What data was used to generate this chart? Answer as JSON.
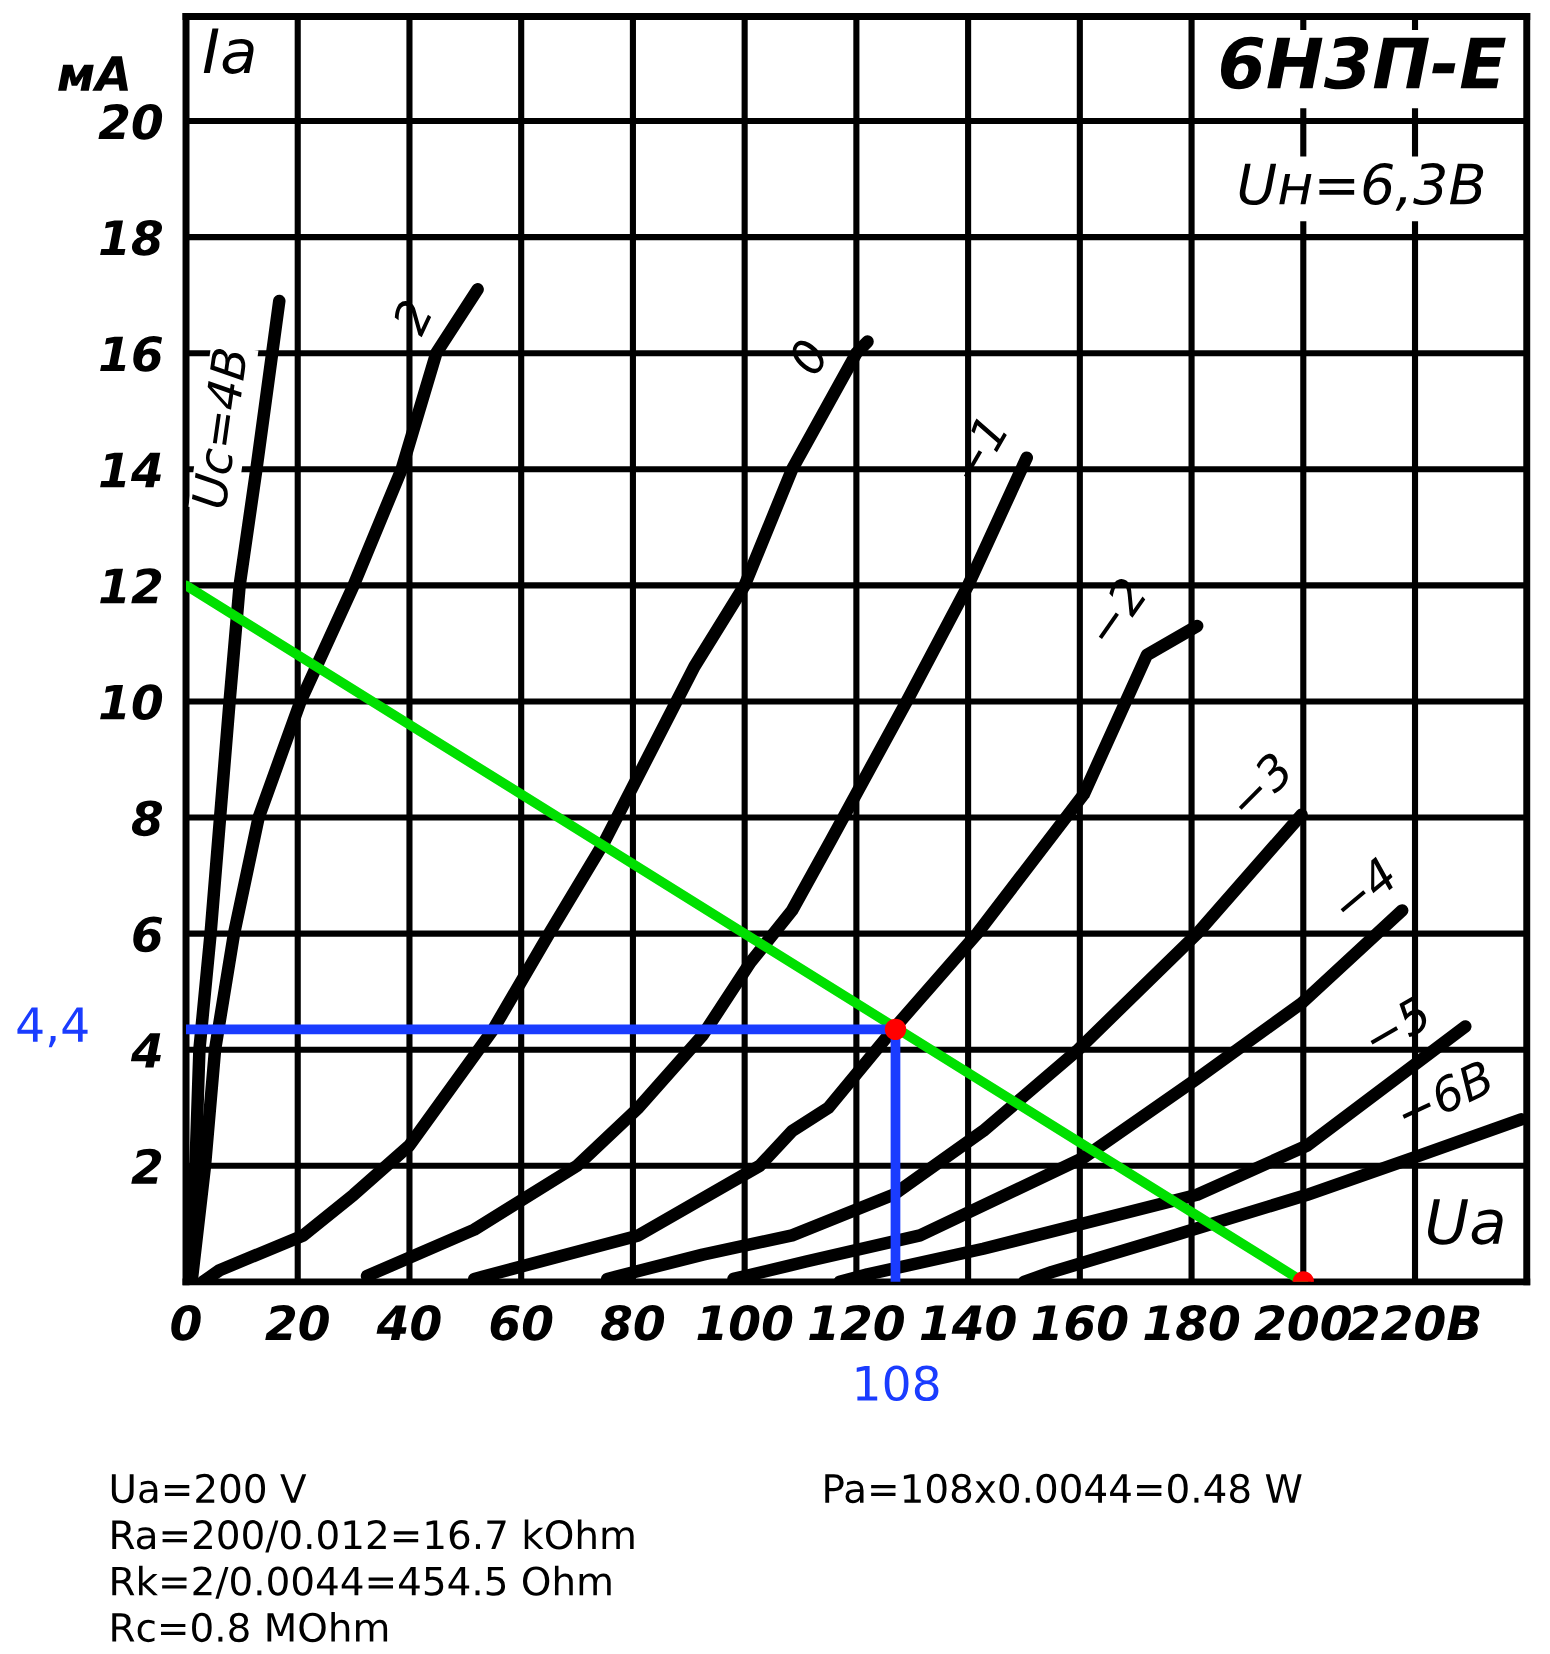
{
  "chart_data": {
    "type": "line",
    "title": "6Н3П-Е",
    "subtitle": "Uн=6,3В",
    "xlabel": "Uа",
    "ylabel": "Iа",
    "xlim": [
      0,
      240
    ],
    "ylim": [
      0,
      21.8
    ],
    "xticks": [
      0,
      20,
      40,
      60,
      80,
      100,
      120,
      140,
      160,
      180,
      200,
      {
        "value": 220,
        "label": "220В"
      }
    ],
    "yticks": [
      2,
      4,
      6,
      8,
      10,
      12,
      14,
      16,
      18,
      20
    ],
    "grid": true,
    "marker": "none",
    "line_style": "solid",
    "series": [
      {
        "name": "Uс=4В",
        "color": "#000000",
        "x": [
          0,
          1,
          1.7,
          2.4,
          4.4,
          6.1,
          7.8,
          9.6,
          12.6,
          16.7
        ],
        "values": [
          0,
          1,
          2,
          4,
          6,
          8,
          10,
          12,
          14,
          16.9
        ]
      },
      {
        "name": "2",
        "color": "#000000",
        "x": [
          1,
          3.4,
          5.2,
          8.6,
          13,
          20.5,
          30,
          38.6,
          44.8,
          52.2
        ],
        "values": [
          0,
          2,
          4,
          6,
          8,
          10,
          12,
          14,
          16,
          17.1
        ]
      },
      {
        "name": "0",
        "color": "#000000",
        "x": [
          3,
          6,
          21,
          30,
          40,
          55,
          65,
          75,
          91,
          100,
          108.5,
          120,
          122
        ],
        "values": [
          0,
          0.2,
          0.8,
          1.5,
          2.35,
          4.35,
          6,
          7.6,
          10.6,
          12,
          14,
          16,
          16.2
        ]
      },
      {
        "name": "−1",
        "color": "#000000",
        "x": [
          32.4,
          51.6,
          70,
          81,
          92.5,
          101,
          108.5,
          115.4,
          129,
          140,
          150.5
        ],
        "values": [
          0.1,
          0.9,
          2,
          3,
          4.25,
          5.5,
          6.4,
          7.6,
          10,
          12,
          14.2
        ]
      },
      {
        "name": "−2",
        "color": "#000000",
        "x": [
          51.6,
          81,
          102.7,
          108.5,
          115,
          126.6,
          141.6,
          160.7,
          172,
          181
        ],
        "values": [
          0.05,
          0.8,
          2,
          2.6,
          3,
          4.35,
          6,
          8.4,
          10.8,
          11.3
        ]
      },
      {
        "name": "−3",
        "color": "#000000",
        "x": [
          75.4,
          92.5,
          108.5,
          126.6,
          142.7,
          159.7,
          181,
          199.7
        ],
        "values": [
          0.05,
          0.47,
          0.8,
          1.5,
          2.6,
          4,
          6,
          8.05
        ]
      },
      {
        "name": "−4",
        "color": "#000000",
        "x": [
          98,
          111,
          131.4,
          160.7,
          181,
          199.7,
          217.7
        ],
        "values": [
          0.05,
          0.35,
          0.8,
          2.14,
          3.5,
          4.8,
          6.4
        ]
      },
      {
        "name": "−5",
        "color": "#000000",
        "x": [
          117,
          122,
          142.7,
          181,
          200.7,
          229
        ],
        "values": [
          0,
          0.13,
          0.57,
          1.5,
          2.35,
          4.4
        ]
      },
      {
        "name": "−6В",
        "color": "#000000",
        "x": [
          150,
          155,
          176.8,
          200.7,
          220,
          239
        ],
        "values": [
          0,
          0.17,
          0.8,
          1.5,
          2.15,
          2.8
        ]
      },
      {
        "color": "#00e000",
        "x": [
          0,
          200
        ],
        "values": [
          12,
          0
        ]
      },
      {
        "color": "#1a3cff",
        "x": [
          0,
          127
        ],
        "values": [
          4.35,
          4.35
        ]
      },
      {
        "color": "#1a3cff",
        "x": [
          127,
          127
        ],
        "values": [
          0,
          4.35
        ]
      },
      {
        "type": "scatter",
        "marker": "circle",
        "color": "#ff0000",
        "x": [
          127,
          200
        ],
        "values": [
          4.35,
          0
        ]
      }
    ],
    "annotations": [
      "мА",
      "4,4",
      "108",
      "Ua=200 V",
      "Ra=200/0.012=16.7 kOhm",
      "Rk=2/0.0044=454.5 Ohm",
      "Rc=0.8 MOhm",
      "Pa=108x0.0044=0.48 W"
    ]
  }
}
